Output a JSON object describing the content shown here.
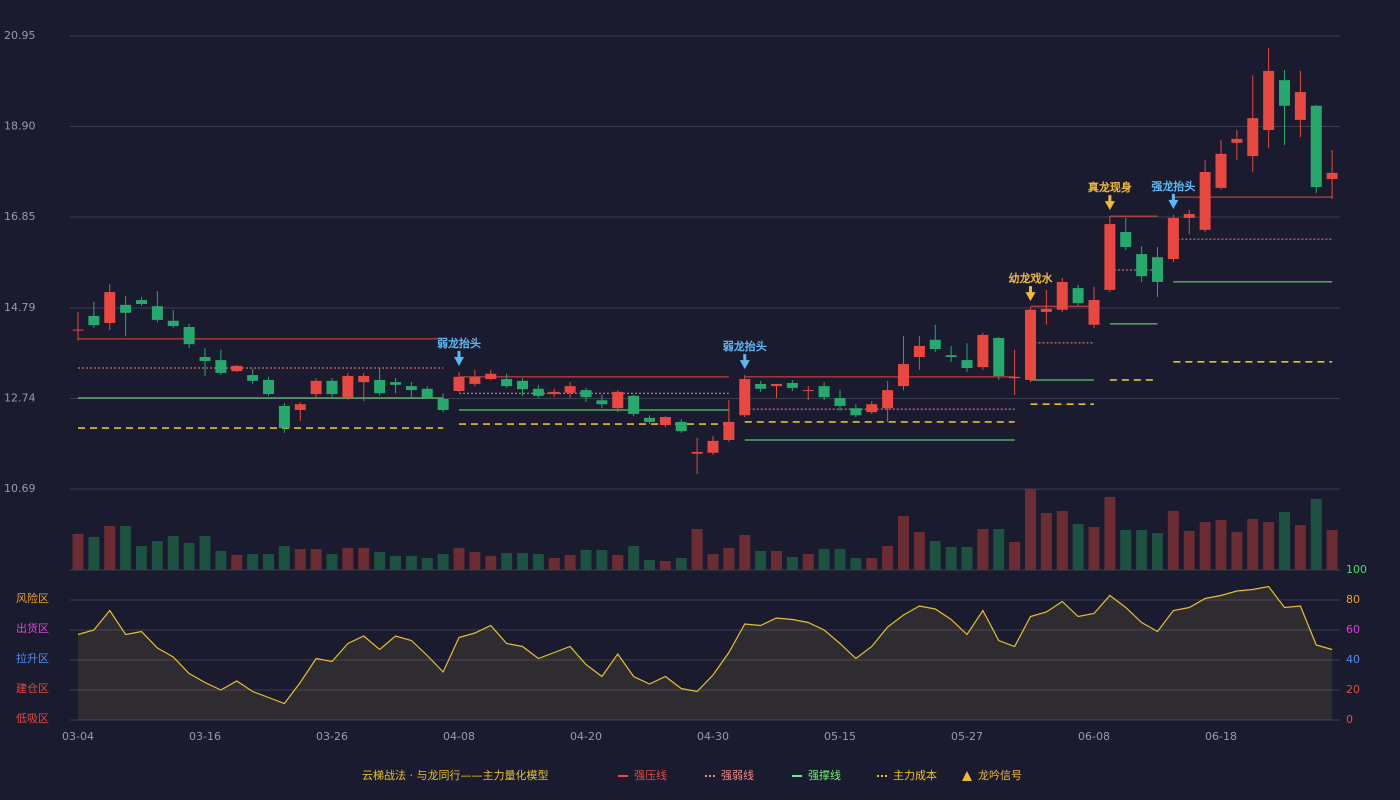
{
  "chart_data": {
    "type": "candlestick",
    "categories": [
      "03-04",
      null,
      null,
      null,
      null,
      null,
      null,
      null,
      "03-16",
      null,
      null,
      null,
      null,
      null,
      null,
      null,
      "03-26",
      null,
      null,
      null,
      null,
      null,
      null,
      null,
      "04-08",
      null,
      null,
      null,
      null,
      null,
      null,
      null,
      "04-20",
      null,
      null,
      null,
      null,
      null,
      null,
      null,
      "04-30",
      null,
      null,
      null,
      null,
      null,
      null,
      null,
      "05-15",
      null,
      null,
      null,
      null,
      null,
      null,
      null,
      "05-27",
      null,
      null,
      null,
      null,
      null,
      null,
      null,
      "06-08",
      null,
      null,
      null,
      null,
      null,
      null,
      null,
      "06-18",
      null,
      null,
      null,
      null,
      null,
      null,
      null
    ],
    "open": [
      14.28,
      14.61,
      14.45,
      14.86,
      14.97,
      14.83,
      14.5,
      14.36,
      13.68,
      13.61,
      13.36,
      13.27,
      13.16,
      12.57,
      12.48,
      12.84,
      13.14,
      12.75,
      13.11,
      13.16,
      13.11,
      13.02,
      12.96,
      12.73,
      12.91,
      13.07,
      13.18,
      13.18,
      13.14,
      12.96,
      12.84,
      12.87,
      12.93,
      12.7,
      12.52,
      12.8,
      12.3,
      12.14,
      12.21,
      11.49,
      11.51,
      11.8,
      12.36,
      13.07,
      13.02,
      13.09,
      12.91,
      13.02,
      12.75,
      12.52,
      12.43,
      12.52,
      13.02,
      13.68,
      14.07,
      13.72,
      13.61,
      13.45,
      14.11,
      13.2,
      13.16,
      14.7,
      14.75,
      15.24,
      14.41,
      15.2,
      16.51,
      16.01,
      15.94,
      15.9,
      16.83,
      16.56,
      17.51,
      18.53,
      18.23,
      18.82,
      19.95,
      19.05,
      19.37,
      17.71
    ],
    "high": [
      14.7,
      14.93,
      15.33,
      15.06,
      15.04,
      15.17,
      14.74,
      14.43,
      13.88,
      13.84,
      13.5,
      13.41,
      13.23,
      12.64,
      12.66,
      13.2,
      13.2,
      13.32,
      13.32,
      13.43,
      13.2,
      13.11,
      13.02,
      12.86,
      13.34,
      13.39,
      13.39,
      13.3,
      13.2,
      13.05,
      12.96,
      13.11,
      12.98,
      12.82,
      12.93,
      12.82,
      12.36,
      12.34,
      12.27,
      11.85,
      11.89,
      12.7,
      13.27,
      13.14,
      13.07,
      13.16,
      13.02,
      13.11,
      12.93,
      12.61,
      12.68,
      13.14,
      14.16,
      14.16,
      14.41,
      13.93,
      13.99,
      14.23,
      14.13,
      13.84,
      14.81,
      15.2,
      15.47,
      15.31,
      15.27,
      16.87,
      16.83,
      16.19,
      16.17,
      16.9,
      17.01,
      18.14,
      18.6,
      18.82,
      20.06,
      20.68,
      20.18,
      20.16,
      19.39,
      18.37
    ],
    "low": [
      14.05,
      14.34,
      14.29,
      14.15,
      14.84,
      14.47,
      14.34,
      13.88,
      13.25,
      13.27,
      13.34,
      13.07,
      12.8,
      11.96,
      12.23,
      12.77,
      12.73,
      12.71,
      12.68,
      12.8,
      12.86,
      12.75,
      12.73,
      12.43,
      12.89,
      13.02,
      13.16,
      12.98,
      12.8,
      12.75,
      12.77,
      12.75,
      12.66,
      12.52,
      12.43,
      12.34,
      12.16,
      12.09,
      11.96,
      11.03,
      11.46,
      11.76,
      12.32,
      12.89,
      12.75,
      12.91,
      12.7,
      12.7,
      12.46,
      12.32,
      12.39,
      12.21,
      12.93,
      13.39,
      13.79,
      13.57,
      13.34,
      13.39,
      13.16,
      12.82,
      13.11,
      14.41,
      14.7,
      14.84,
      14.34,
      15.15,
      16.1,
      15.38,
      15.04,
      15.83,
      16.46,
      16.51,
      17.47,
      18.14,
      17.87,
      18.41,
      18.48,
      18.66,
      17.39,
      17.26
    ],
    "close": [
      14.3,
      14.4,
      15.15,
      14.68,
      14.88,
      14.52,
      14.38,
      13.97,
      13.59,
      13.32,
      13.48,
      13.14,
      12.84,
      12.07,
      12.61,
      13.14,
      12.84,
      13.25,
      13.25,
      12.86,
      13.05,
      12.93,
      12.77,
      12.48,
      13.23,
      13.23,
      13.3,
      13.02,
      12.95,
      12.8,
      12.89,
      13.02,
      12.77,
      12.61,
      12.89,
      12.39,
      12.21,
      12.32,
      12.0,
      11.53,
      11.78,
      12.21,
      13.18,
      12.96,
      13.07,
      12.98,
      12.93,
      12.77,
      12.57,
      12.36,
      12.61,
      12.93,
      13.52,
      13.93,
      13.86,
      13.68,
      13.43,
      14.18,
      13.25,
      13.23,
      14.75,
      14.77,
      15.38,
      14.9,
      14.97,
      16.69,
      16.17,
      15.51,
      15.38,
      16.83,
      16.92,
      17.87,
      18.28,
      18.62,
      19.09,
      20.16,
      19.37,
      19.68,
      17.53,
      17.85
    ],
    "up_color": "#e8483f",
    "down_color": "#26a96c",
    "volume": [
      36,
      33,
      44,
      44,
      24,
      29,
      34,
      27,
      34,
      19,
      15,
      16,
      16,
      24,
      21,
      21,
      16,
      22,
      22,
      18,
      14,
      14,
      12,
      16,
      22,
      18,
      14,
      17,
      17,
      16,
      12,
      15,
      20,
      20,
      15,
      24,
      10,
      9,
      12,
      41,
      16,
      22,
      35,
      19,
      19,
      13,
      16,
      21,
      21,
      12,
      12,
      24,
      54,
      38,
      29,
      23,
      23,
      41,
      41,
      28,
      81,
      57,
      59,
      46,
      43,
      73,
      40,
      40,
      37,
      59,
      39,
      48,
      50,
      38,
      51,
      48,
      58,
      45,
      71,
      40
    ],
    "volume_up_color": "#6b2c33",
    "volume_down_color": "#1d5140",
    "ylim": [
      10.69,
      20.95
    ],
    "yticks": [
      10.69,
      12.74,
      14.79,
      16.85,
      {
        "value": 18.9,
        "label": "18.90"
      },
      20.95
    ],
    "levels": [
      {
        "name": "强压线",
        "color": "#e8483f",
        "dashed": false,
        "segments": [
          {
            "start": 0,
            "end": 23,
            "value": 14.09
          },
          {
            "start": 24,
            "end": 41,
            "value": 13.23
          },
          {
            "start": 42,
            "end": 59,
            "value": 13.23
          },
          {
            "start": 60,
            "end": 64,
            "value": 14.83
          },
          {
            "start": 65,
            "end": 68,
            "value": 16.87
          },
          {
            "start": 69,
            "end": 79,
            "value": 17.3
          }
        ]
      },
      {
        "name": "强弱线",
        "color": "#f08a8a",
        "dashed": true,
        "segments": [
          {
            "start": 0,
            "end": 23,
            "value": 13.43
          },
          {
            "start": 24,
            "end": 41,
            "value": 12.86
          },
          {
            "start": 42,
            "end": 59,
            "value": 12.5
          },
          {
            "start": 60,
            "end": 64,
            "value": 14.0
          },
          {
            "start": 65,
            "end": 68,
            "value": 15.65
          },
          {
            "start": 69,
            "end": 79,
            "value": 16.35
          }
        ]
      },
      {
        "name": "强撑线",
        "color": "#6ef07a",
        "dashed": false,
        "segments": [
          {
            "start": 0,
            "end": 23,
            "value": 12.75
          },
          {
            "start": 24,
            "end": 41,
            "value": 12.48
          },
          {
            "start": 42,
            "end": 59,
            "value": 11.8
          },
          {
            "start": 60,
            "end": 64,
            "value": 13.16
          },
          {
            "start": 65,
            "end": 68,
            "value": 14.43
          },
          {
            "start": 69,
            "end": 79,
            "value": 15.38
          }
        ]
      },
      {
        "name": "主力成本",
        "color": "#e6c02e",
        "dashed": true,
        "segments": [
          {
            "start": 0,
            "end": 23,
            "value": 12.07
          },
          {
            "start": 24,
            "end": 41,
            "value": 12.16
          },
          {
            "start": 42,
            "end": 59,
            "value": 12.21
          },
          {
            "start": 60,
            "end": 64,
            "value": 12.61
          },
          {
            "start": 65,
            "end": 68,
            "value": 13.16
          },
          {
            "start": 69,
            "end": 79,
            "value": 13.57
          }
        ]
      }
    ],
    "signals": [
      {
        "label": "弱龙抬头",
        "index": 24,
        "color": "#5bb8f5"
      },
      {
        "label": "弱龙抬头",
        "index": 42,
        "color": "#5bb8f5"
      },
      {
        "label": "幼龙戏水",
        "index": 60,
        "color": "#f0b93a"
      },
      {
        "label": "真龙现身",
        "index": 65,
        "color": "#f0b93a"
      },
      {
        "label": "强龙抬头",
        "index": 69,
        "color": "#5bb8f5"
      }
    ],
    "signal_legend": "龙吟信号",
    "signal_legend_color": "#f0b93a",
    "legend_title": "云梯战法 · 与龙同行——主力量化模型",
    "indicator": {
      "values": [
        57,
        60,
        73,
        57,
        59,
        48,
        42,
        31,
        25,
        20,
        26,
        19,
        15,
        11,
        25,
        41,
        39,
        51,
        56,
        47,
        56,
        53,
        43,
        32,
        55,
        58,
        63,
        51,
        49,
        41,
        45,
        49,
        37,
        29,
        44,
        29,
        24,
        29,
        21,
        19,
        30,
        45,
        64,
        63,
        68,
        67,
        65,
        60,
        51,
        41,
        49,
        62,
        70,
        76,
        74,
        67,
        57,
        73,
        53,
        49,
        69,
        72,
        79,
        69,
        71,
        83,
        75,
        65,
        59,
        73,
        75,
        81,
        83,
        86,
        87,
        89,
        75,
        76,
        50,
        47
      ],
      "color": "#e6c02e",
      "ylim": [
        0,
        100
      ],
      "yticks": [
        0,
        20,
        40,
        60,
        80,
        100
      ],
      "ytick_colors": [
        "#e8483f",
        "#e8483f",
        "#4f8ff0",
        "#e23fd8",
        "#f0a030",
        "#3ee06a"
      ],
      "zones": [
        {
          "label": "风险区",
          "value": 80,
          "color": "#f0a030"
        },
        {
          "label": "出货区",
          "value": 60,
          "color": "#e23fd8"
        },
        {
          "label": "拉升区",
          "value": 40,
          "color": "#4f8ff0"
        },
        {
          "label": "建仓区",
          "value": 20,
          "color": "#e8483f"
        },
        {
          "label": "低吸区",
          "value": 0,
          "color": "#e8483f"
        }
      ]
    }
  }
}
